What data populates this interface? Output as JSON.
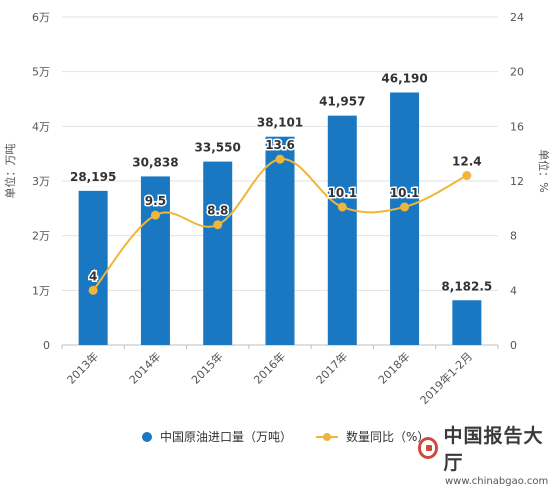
{
  "chart_data": {
    "type": "bar+line",
    "categories": [
      "2013年",
      "2014年",
      "2015年",
      "2016年",
      "2017年",
      "2018年",
      "2019年1-2月"
    ],
    "series": [
      {
        "name": "中国原油进口量（万吨）",
        "type": "bar",
        "axis": "left",
        "values": [
          28195,
          30838,
          33550,
          38101,
          41957,
          46190,
          8182.5
        ],
        "labels": [
          "28,195",
          "30,838",
          "33,550",
          "38,101",
          "41,957",
          "46,190",
          "8,182.5"
        ],
        "color": "#1a77c2"
      },
      {
        "name": "数量同比（%）",
        "type": "line",
        "axis": "right",
        "values": [
          4,
          9.5,
          8.8,
          13.6,
          10.1,
          10.1,
          12.4
        ],
        "labels": [
          "4",
          "9.5",
          "8.8",
          "13.6",
          "10.1",
          "10.1",
          "12.4"
        ],
        "color": "#f0b63a"
      }
    ],
    "y_left": {
      "label": "单位：万吨",
      "ylim": [
        0,
        60000
      ],
      "ticks": [
        "0",
        "1万",
        "2万",
        "3万",
        "4万",
        "5万",
        "6万"
      ]
    },
    "y_right": {
      "label": "单位：%",
      "ylim": [
        0,
        24
      ],
      "ticks": [
        "0",
        "4",
        "8",
        "12",
        "16",
        "20",
        "24"
      ]
    },
    "grid": true,
    "legend_position": "bottom"
  },
  "watermark": {
    "title": "中国报告大厅",
    "url": "www.chinabgao.com"
  }
}
